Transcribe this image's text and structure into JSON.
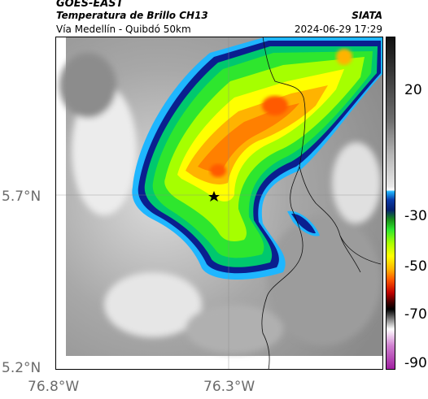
{
  "header": {
    "satellite": "GOES-EAST",
    "product": "Temperatura de Brillo CH13",
    "route": "Vía Medellín - Quibdó 50km",
    "source": "SIATA",
    "timestamp": "2024-06-29 17:29"
  },
  "map": {
    "y_ticks": [
      "5.7°N",
      "5.2°N"
    ],
    "x_ticks": [
      "76.8°W",
      "76.3°W"
    ],
    "marker": "star"
  },
  "colorbar": {
    "ticks": [
      "20",
      "-30",
      "-50",
      "-70",
      "-90"
    ],
    "palette_icon": "temperature-colorbar"
  }
}
